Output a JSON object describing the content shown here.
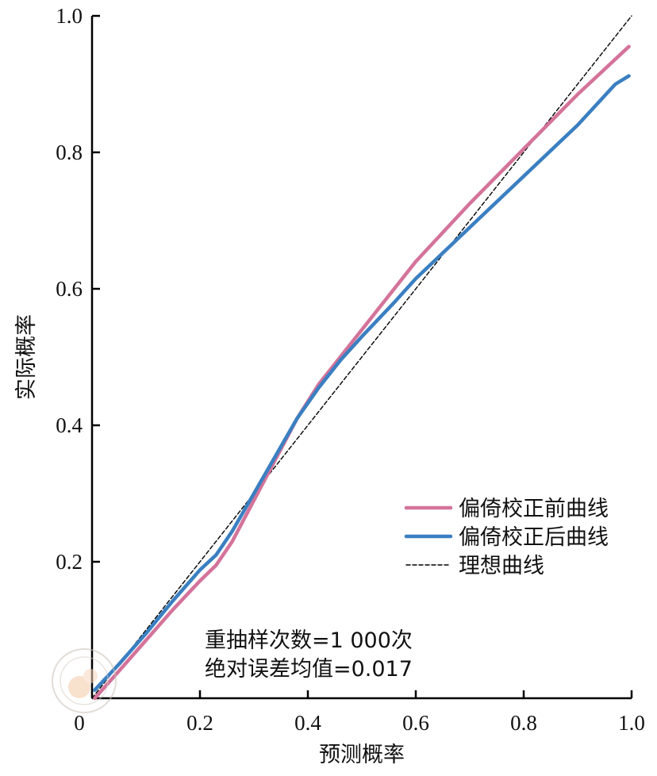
{
  "chart_data": {
    "type": "line",
    "xlabel": "预测概率",
    "ylabel": "实际概率",
    "xlim": [
      0,
      1.0
    ],
    "ylim": [
      0,
      1.0
    ],
    "x_ticks": [
      "0",
      "0.2",
      "0.4",
      "0.6",
      "0.8",
      "1.0"
    ],
    "y_ticks": [
      "0.2",
      "0.4",
      "0.6",
      "0.8",
      "1.0"
    ],
    "grid": false,
    "legend_position": "right",
    "series": [
      {
        "name": "偏倚校正前曲线",
        "color": "#d4739a",
        "style": "solid",
        "x": [
          0.005,
          0.05,
          0.1,
          0.15,
          0.2,
          0.23,
          0.26,
          0.3,
          0.34,
          0.38,
          0.42,
          0.46,
          0.5,
          0.56,
          0.6,
          0.7,
          0.8,
          0.9,
          0.995
        ],
        "y": [
          0.0,
          0.04,
          0.085,
          0.13,
          0.172,
          0.195,
          0.23,
          0.29,
          0.35,
          0.41,
          0.46,
          0.5,
          0.54,
          0.6,
          0.64,
          0.725,
          0.805,
          0.885,
          0.955
        ]
      },
      {
        "name": "偏倚校正后曲线",
        "color": "#3a7fc1",
        "style": "solid",
        "x": [
          0.005,
          0.05,
          0.1,
          0.15,
          0.2,
          0.23,
          0.26,
          0.3,
          0.34,
          0.38,
          0.42,
          0.46,
          0.5,
          0.56,
          0.6,
          0.7,
          0.8,
          0.9,
          0.97,
          0.995
        ],
        "y": [
          0.012,
          0.05,
          0.095,
          0.143,
          0.188,
          0.21,
          0.245,
          0.3,
          0.355,
          0.41,
          0.455,
          0.495,
          0.53,
          0.58,
          0.615,
          0.69,
          0.765,
          0.84,
          0.9,
          0.912
        ]
      },
      {
        "name": "理想曲线",
        "color": "#000000",
        "style": "dashed",
        "x": [
          0.0,
          1.0
        ],
        "y": [
          0.0,
          1.0
        ]
      }
    ],
    "annotations": [
      "重抽样次数=1 000次",
      "绝对误差均值=0.017"
    ]
  }
}
